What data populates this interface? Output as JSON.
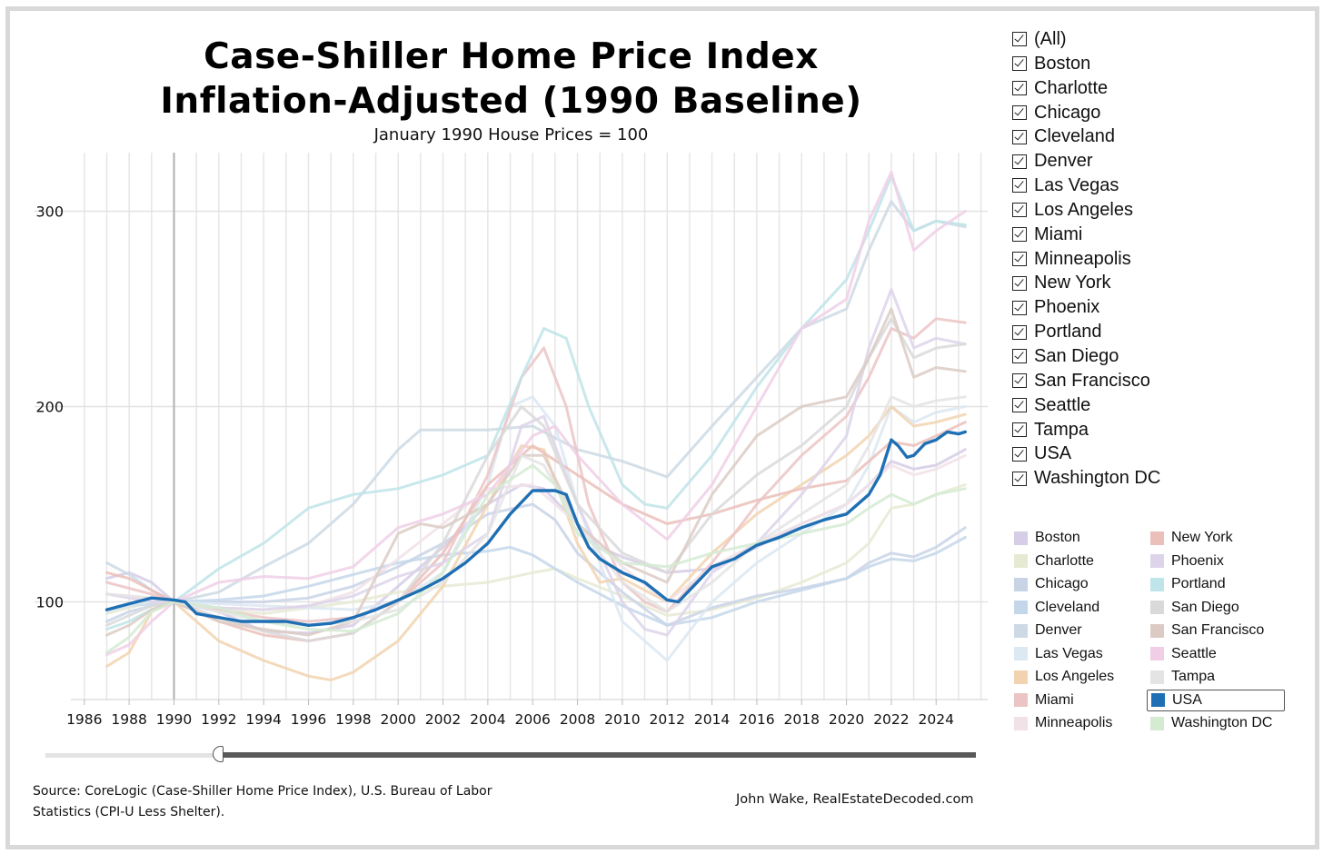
{
  "chart_data": {
    "type": "line",
    "title": "Case-Shiller Home Price Index",
    "subtitle_line": "Inflation-Adjusted (1990 Baseline)",
    "caption": "January 1990 House Prices = 100",
    "xlim": [
      1985.4,
      2026.3
    ],
    "ylim": [
      50,
      330
    ],
    "x_ticks": [
      "1986",
      "1988",
      "1990",
      "1992",
      "1994",
      "1996",
      "1998",
      "2000",
      "2002",
      "2004",
      "2006",
      "2008",
      "2010",
      "2012",
      "2014",
      "2016",
      "2018",
      "2020",
      "2022",
      "2024"
    ],
    "y_ticks": [
      100,
      200,
      300
    ],
    "grid": true,
    "legend_position": "right",
    "series": [
      {
        "name": "Boston",
        "color": "#d6cde6",
        "x": [
          1987,
          1988,
          1989,
          1990,
          1992,
          1994,
          1996,
          1998,
          2000,
          2002,
          2004,
          2005.5,
          2006.5,
          2008,
          2009,
          2010,
          2011,
          2012,
          2013,
          2014,
          2016,
          2018,
          2020,
          2021,
          2022,
          2023,
          2024,
          2025.3
        ],
        "values": [
          112,
          115,
          110,
          100,
          95,
          85,
          84,
          88,
          108,
          128,
          150,
          160,
          158,
          140,
          128,
          123,
          119,
          115,
          116,
          117,
          128,
          140,
          150,
          160,
          172,
          168,
          170,
          178
        ]
      },
      {
        "name": "Charlotte",
        "color": "#e6ead2",
        "x": [
          1987,
          1988,
          1989,
          1990,
          1992,
          1994,
          1996,
          1998,
          2000,
          2002,
          2004,
          2006,
          2007,
          2008,
          2010,
          2012,
          2014,
          2016,
          2018,
          2020,
          2021,
          2022,
          2023,
          2024,
          2025.3
        ],
        "values": [
          94,
          97,
          100,
          100,
          96,
          94,
          97,
          100,
          105,
          108,
          110,
          115,
          117,
          112,
          103,
          93,
          96,
          102,
          110,
          120,
          130,
          148,
          150,
          155,
          160
        ]
      },
      {
        "name": "Chicago",
        "color": "#c9d3e6",
        "x": [
          1987,
          1988,
          1989,
          1990,
          1992,
          1994,
          1996,
          1998,
          2000,
          2002,
          2004,
          2006,
          2007,
          2008,
          2010,
          2012,
          2014,
          2016,
          2018,
          2020,
          2021,
          2022,
          2023,
          2024,
          2025.3
        ],
        "values": [
          90,
          95,
          98,
          100,
          100,
          100,
          102,
          108,
          118,
          130,
          145,
          150,
          142,
          125,
          105,
          88,
          97,
          103,
          107,
          112,
          120,
          125,
          123,
          128,
          138
        ]
      },
      {
        "name": "Cleveland",
        "color": "#c4d7ea",
        "x": [
          1987,
          1988,
          1989,
          1990,
          1992,
          1994,
          1996,
          1998,
          2000,
          2002,
          2004,
          2005,
          2006,
          2008,
          2010,
          2012,
          2014,
          2016,
          2018,
          2020,
          2021,
          2022,
          2023,
          2024,
          2025.3
        ],
        "values": [
          96,
          98,
          99,
          100,
          101,
          103,
          108,
          114,
          120,
          124,
          126,
          128,
          124,
          110,
          98,
          88,
          92,
          100,
          106,
          112,
          118,
          122,
          121,
          125,
          133
        ]
      },
      {
        "name": "Denver",
        "color": "#cdd9e4",
        "x": [
          1987,
          1988,
          1989,
          1990,
          1992,
          1994,
          1996,
          1998,
          2000,
          2001,
          2002,
          2004,
          2006,
          2008,
          2010,
          2012,
          2014,
          2016,
          2018,
          2020,
          2021,
          2022,
          2023,
          2024,
          2025.3
        ],
        "values": [
          120,
          114,
          106,
          100,
          105,
          118,
          130,
          150,
          178,
          188,
          188,
          188,
          190,
          178,
          172,
          164,
          190,
          215,
          240,
          250,
          280,
          305,
          290,
          295,
          292
        ]
      },
      {
        "name": "Las Vegas",
        "color": "#dce8f2",
        "x": [
          1987,
          1988,
          1989,
          1990,
          1992,
          1994,
          1996,
          1998,
          2000,
          2002,
          2004,
          2005,
          2006,
          2007,
          2008,
          2010,
          2012,
          2014,
          2016,
          2018,
          2020,
          2021,
          2022,
          2023,
          2024,
          2025.3
        ],
        "values": [
          95,
          98,
          100,
          100,
          99,
          98,
          97,
          96,
          100,
          115,
          160,
          200,
          205,
          190,
          150,
          90,
          70,
          100,
          120,
          135,
          150,
          170,
          200,
          192,
          197,
          200
        ]
      },
      {
        "name": "Los Angeles",
        "color": "#f2d3b0",
        "x": [
          1987,
          1988,
          1989,
          1990,
          1991,
          1992,
          1994,
          1996,
          1997,
          1998,
          2000,
          2002,
          2004,
          2005.5,
          2006.5,
          2008,
          2009,
          2010,
          2012,
          2014,
          2016,
          2018,
          2020,
          2021,
          2022,
          2023,
          2024,
          2025.3
        ],
        "values": [
          67,
          74,
          95,
          100,
          90,
          80,
          70,
          62,
          60,
          64,
          80,
          108,
          150,
          180,
          178,
          130,
          110,
          112,
          100,
          125,
          145,
          160,
          175,
          185,
          200,
          190,
          192,
          196
        ]
      },
      {
        "name": "Miami",
        "color": "#ecc4c6",
        "x": [
          1987,
          1988,
          1989,
          1990,
          1992,
          1994,
          1996,
          1998,
          2000,
          2002,
          2004,
          2005.5,
          2006.5,
          2007.5,
          2008.5,
          2010,
          2011,
          2012,
          2014,
          2016,
          2018,
          2020,
          2021,
          2022,
          2023,
          2024,
          2025.3
        ],
        "values": [
          110,
          107,
          104,
          100,
          96,
          92,
          90,
          92,
          100,
          120,
          165,
          215,
          230,
          200,
          150,
          110,
          100,
          95,
          120,
          150,
          175,
          195,
          215,
          240,
          235,
          245,
          243
        ]
      },
      {
        "name": "Minneapolis",
        "color": "#f1e2e8",
        "x": [
          1987,
          1988,
          1989,
          1990,
          1992,
          1994,
          1996,
          1998,
          2000,
          2002,
          2004,
          2006,
          2008,
          2010,
          2012,
          2014,
          2016,
          2018,
          2020,
          2021,
          2022,
          2023,
          2024,
          2025.3
        ],
        "values": [
          104,
          103,
          102,
          100,
          97,
          96,
          98,
          105,
          122,
          140,
          158,
          160,
          140,
          118,
          100,
          118,
          130,
          140,
          150,
          160,
          170,
          165,
          168,
          175
        ]
      },
      {
        "name": "New York",
        "color": "#ebbfba",
        "x": [
          1987,
          1988,
          1989,
          1990,
          1992,
          1994,
          1996,
          1998,
          2000,
          2002,
          2004,
          2006,
          2008,
          2010,
          2012,
          2014,
          2016,
          2018,
          2020,
          2021,
          2022,
          2023,
          2024,
          2025.3
        ],
        "values": [
          115,
          112,
          106,
          100,
          90,
          83,
          80,
          84,
          100,
          125,
          160,
          180,
          165,
          150,
          140,
          145,
          152,
          158,
          162,
          172,
          182,
          180,
          185,
          192
        ]
      },
      {
        "name": "Phoenix",
        "color": "#ddd4ea",
        "x": [
          1987,
          1988,
          1989,
          1990,
          1992,
          1994,
          1996,
          1998,
          2000,
          2002,
          2004,
          2005.5,
          2006.5,
          2008,
          2010,
          2011,
          2012,
          2014,
          2016,
          2018,
          2020,
          2021,
          2022,
          2023,
          2024,
          2025.3
        ],
        "values": [
          104,
          102,
          100,
          100,
          97,
          96,
          98,
          103,
          113,
          120,
          135,
          190,
          195,
          150,
          100,
          86,
          83,
          115,
          130,
          155,
          185,
          230,
          260,
          230,
          235,
          232
        ]
      },
      {
        "name": "Portland",
        "color": "#bfe4e9",
        "x": [
          1987,
          1988,
          1989,
          1990,
          1992,
          1994,
          1996,
          1998,
          2000,
          2002,
          2004,
          2005.5,
          2006.5,
          2007.5,
          2008.5,
          2010,
          2011,
          2012,
          2014,
          2016,
          2018,
          2020,
          2021,
          2022,
          2023,
          2024,
          2025.3
        ],
        "values": [
          86,
          90,
          96,
          100,
          117,
          130,
          148,
          155,
          158,
          165,
          175,
          215,
          240,
          235,
          200,
          160,
          150,
          148,
          175,
          210,
          240,
          265,
          290,
          318,
          290,
          295,
          293
        ]
      },
      {
        "name": "San Diego",
        "color": "#d9d9d9",
        "x": [
          1987,
          1988,
          1989,
          1990,
          1992,
          1994,
          1996,
          1998,
          2000,
          2002,
          2004,
          2005.5,
          2006.5,
          2008,
          2010,
          2012,
          2014,
          2016,
          2018,
          2020,
          2021,
          2022,
          2023,
          2024,
          2025.3
        ],
        "values": [
          88,
          93,
          98,
          100,
          92,
          85,
          80,
          84,
          100,
          130,
          175,
          200,
          190,
          150,
          125,
          115,
          145,
          165,
          180,
          200,
          225,
          245,
          225,
          230,
          232
        ]
      },
      {
        "name": "San Francisco",
        "color": "#dccbc4",
        "x": [
          1987,
          1988,
          1989,
          1990,
          1992,
          1994,
          1996,
          1998,
          2000,
          2001,
          2002,
          2004,
          2005.5,
          2006.5,
          2008,
          2010,
          2012,
          2014,
          2016,
          2018,
          2020,
          2021,
          2022,
          2023,
          2024,
          2025.3
        ],
        "values": [
          83,
          88,
          96,
          100,
          90,
          86,
          83,
          90,
          135,
          140,
          138,
          150,
          175,
          175,
          140,
          120,
          110,
          155,
          185,
          200,
          205,
          225,
          250,
          215,
          220,
          218
        ]
      },
      {
        "name": "Seattle",
        "color": "#f0cfe6",
        "x": [
          1987,
          1988,
          1989,
          1990,
          1992,
          1994,
          1996,
          1998,
          2000,
          2002,
          2004,
          2006,
          2007,
          2008,
          2010,
          2012,
          2014,
          2016,
          2018,
          2020,
          2021,
          2022,
          2023,
          2024,
          2025.3
        ],
        "values": [
          73,
          78,
          90,
          100,
          110,
          113,
          112,
          118,
          138,
          145,
          155,
          185,
          190,
          175,
          150,
          132,
          160,
          200,
          240,
          255,
          295,
          320,
          280,
          290,
          300
        ]
      },
      {
        "name": "Tampa",
        "color": "#e4e4e4",
        "x": [
          1987,
          1988,
          1989,
          1990,
          1992,
          1994,
          1996,
          1998,
          2000,
          2002,
          2004,
          2005.5,
          2006.5,
          2008,
          2010,
          2012,
          2014,
          2016,
          2018,
          2020,
          2021,
          2022,
          2023,
          2024,
          2025.3
        ],
        "values": [
          104,
          103,
          102,
          100,
          95,
          90,
          88,
          90,
          96,
          110,
          135,
          175,
          170,
          140,
          110,
          95,
          110,
          130,
          145,
          160,
          180,
          205,
          200,
          203,
          205
        ]
      },
      {
        "name": "USA",
        "color": "#1f6fb4",
        "x": [
          1987,
          1988,
          1989,
          1990,
          1990.5,
          1991,
          1992,
          1993,
          1994,
          1995,
          1996,
          1997,
          1998,
          1999,
          2000,
          2001,
          2002,
          2003,
          2004,
          2005,
          2006,
          2006.5,
          2007,
          2007.5,
          2008,
          2008.5,
          2009,
          2010,
          2011,
          2012,
          2012.5,
          2013,
          2014,
          2015,
          2016,
          2017,
          2018,
          2019,
          2020,
          2021,
          2021.5,
          2022,
          2022.3,
          2022.7,
          2023,
          2023.5,
          2024,
          2024.5,
          2025,
          2025.3
        ],
        "values": [
          96,
          99,
          102,
          101,
          100,
          94,
          92,
          90,
          90,
          90,
          88,
          89,
          92,
          96,
          101,
          106,
          112,
          120,
          130,
          145,
          157,
          157,
          157,
          155,
          140,
          128,
          122,
          115,
          110,
          101,
          100,
          106,
          118,
          122,
          129,
          133,
          138,
          142,
          145,
          155,
          165,
          183,
          180,
          174,
          175,
          181,
          183,
          187,
          186,
          187
        ]
      },
      {
        "name": "Washington DC",
        "color": "#d4ebd2",
        "x": [
          1987,
          1988,
          1989,
          1990,
          1992,
          1994,
          1996,
          1998,
          2000,
          2002,
          2004,
          2006,
          2007,
          2008,
          2010,
          2012,
          2014,
          2016,
          2018,
          2020,
          2021,
          2022,
          2023,
          2024,
          2025.3
        ],
        "values": [
          74,
          82,
          95,
          100,
          97,
          90,
          86,
          85,
          94,
          115,
          155,
          170,
          160,
          135,
          120,
          118,
          125,
          130,
          135,
          140,
          148,
          155,
          150,
          155,
          158
        ]
      }
    ]
  },
  "filter_list": [
    "(All)",
    "Boston",
    "Charlotte",
    "Chicago",
    "Cleveland",
    "Denver",
    "Las Vegas",
    "Los Angeles",
    "Miami",
    "Minneapolis",
    "New York",
    "Phoenix",
    "Portland",
    "San Diego",
    "San Francisco",
    "Seattle",
    "Tampa",
    "USA",
    "Washington DC"
  ],
  "legend": [
    {
      "name": "Boston",
      "color": "#d6cde6"
    },
    {
      "name": "Charlotte",
      "color": "#e6ead2"
    },
    {
      "name": "Chicago",
      "color": "#c9d3e6"
    },
    {
      "name": "Cleveland",
      "color": "#c4d7ea"
    },
    {
      "name": "Denver",
      "color": "#cdd9e4"
    },
    {
      "name": "Las Vegas",
      "color": "#dce8f2"
    },
    {
      "name": "Los Angeles",
      "color": "#f2d3b0"
    },
    {
      "name": "Miami",
      "color": "#ecc4c6"
    },
    {
      "name": "Minneapolis",
      "color": "#f1e2e8"
    },
    {
      "name": "New York",
      "color": "#ebbfba"
    },
    {
      "name": "Phoenix",
      "color": "#ddd4ea"
    },
    {
      "name": "Portland",
      "color": "#bfe4e9"
    },
    {
      "name": "San Diego",
      "color": "#d9d9d9"
    },
    {
      "name": "San Francisco",
      "color": "#dccbc4"
    },
    {
      "name": "Seattle",
      "color": "#f0cfe6"
    },
    {
      "name": "Tampa",
      "color": "#e4e4e4"
    },
    {
      "name": "USA",
      "color": "#1f6fb4"
    },
    {
      "name": "Washington DC",
      "color": "#d4ebd2"
    }
  ],
  "highlighted_series": "USA",
  "baseline_year": 1990,
  "footer": {
    "source": "Source: CoreLogic (Case-Shiller Home Price Index), U.S. Bureau of Labor Statistics (CPI-U Less Shelter).",
    "credit": "John Wake, RealEstateDecoded.com"
  }
}
